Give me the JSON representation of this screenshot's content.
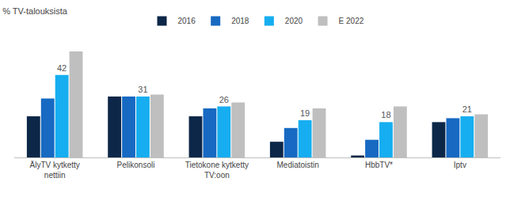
{
  "chart_data": {
    "type": "bar",
    "title": "% TV-talouksista",
    "categories": [
      "ÄlyTV kytketty nettiin",
      "Pelikonsoli",
      "Tietokone kytketty TV:oon",
      "Mediatoistin",
      "HbbTV*",
      "Iptv"
    ],
    "series": [
      {
        "name": "2016",
        "color": "#0c2748",
        "values": [
          21,
          31,
          21,
          8,
          1,
          18
        ]
      },
      {
        "name": "2018",
        "color": "#1769c2",
        "values": [
          30,
          31,
          25,
          15,
          9,
          20
        ]
      },
      {
        "name": "2020",
        "color": "#16aef0",
        "values": [
          42,
          31,
          26,
          19,
          18,
          21
        ],
        "data_labels": true
      },
      {
        "name": "E 2022",
        "color": "#bfbfbf",
        "values": [
          54,
          32,
          28,
          25,
          26,
          22
        ]
      }
    ],
    "legend": "top",
    "tick_labels": "x",
    "grid": false
  }
}
